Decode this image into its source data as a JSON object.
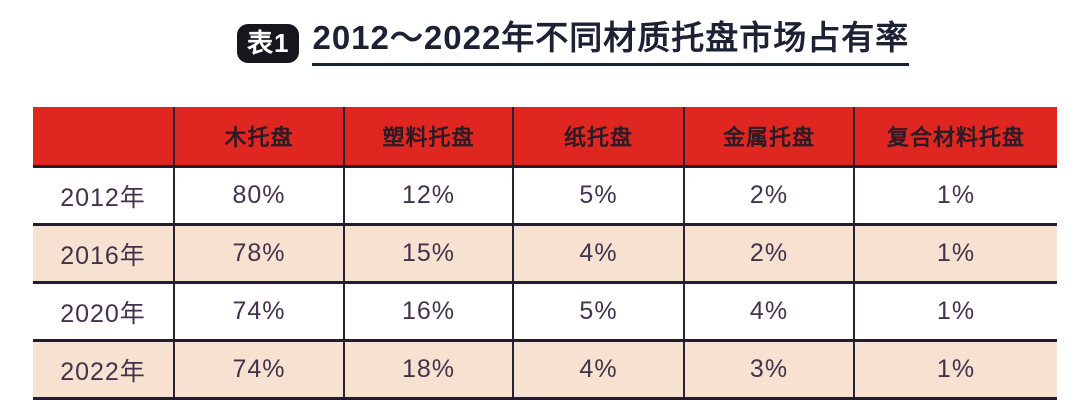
{
  "title": {
    "badge_label": "表1",
    "heading": "2012～2022年不同材质托盘市场占有率"
  },
  "chart_data": {
    "type": "table",
    "title": "2012～2022年不同材质托盘市场占有率",
    "columns": [
      "",
      "木托盘",
      "塑料托盘",
      "纸托盘",
      "金属托盘",
      "复合材料托盘"
    ],
    "rows": [
      [
        "2012年",
        "80%",
        "12%",
        "5%",
        "2%",
        "1%"
      ],
      [
        "2016年",
        "78%",
        "15%",
        "4%",
        "2%",
        "1%"
      ],
      [
        "2020年",
        "74%",
        "16%",
        "5%",
        "4%",
        "1%"
      ],
      [
        "2022年",
        "74%",
        "18%",
        "4%",
        "3%",
        "1%"
      ]
    ],
    "categories": [
      "2012年",
      "2016年",
      "2020年",
      "2022年"
    ],
    "series": [
      {
        "name": "木托盘",
        "values": [
          80,
          78,
          74,
          74
        ]
      },
      {
        "name": "塑料托盘",
        "values": [
          12,
          15,
          16,
          18
        ]
      },
      {
        "name": "纸托盘",
        "values": [
          5,
          4,
          5,
          4
        ]
      },
      {
        "name": "金属托盘",
        "values": [
          2,
          2,
          4,
          3
        ]
      },
      {
        "name": "复合材料托盘",
        "values": [
          1,
          1,
          1,
          1
        ]
      }
    ],
    "unit": "%"
  },
  "colors": {
    "header_bg": "#e02621",
    "row_alt_bg": "#f7e1d1",
    "row_bg": "#ffffff",
    "border": "#241c2c",
    "cell_text": "#43324c",
    "header_text": "#2b1b24",
    "title_text": "#1d2134",
    "badge_bg": "#18161d",
    "badge_text": "#ffffff"
  }
}
